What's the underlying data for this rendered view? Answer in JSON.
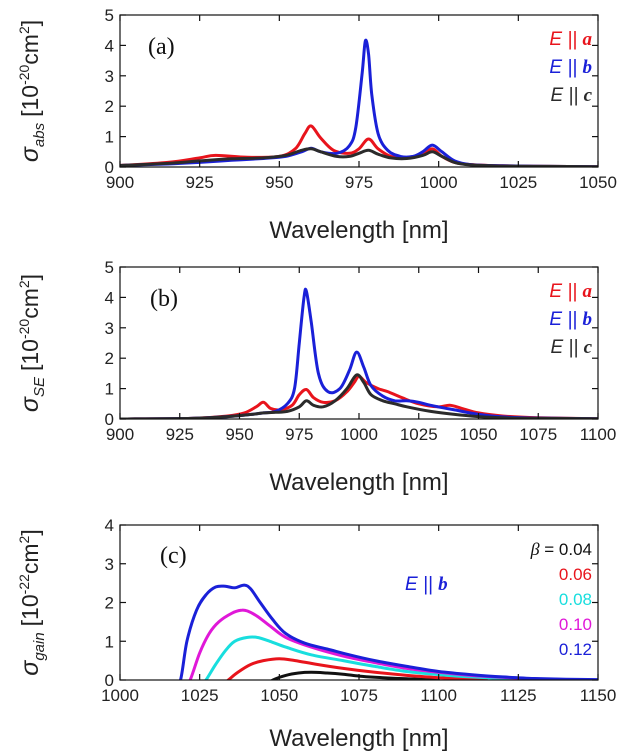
{
  "chart_data": [
    {
      "panel": "(a)",
      "type": "line",
      "xlabel": "Wavelength [nm]",
      "ylabel_symbol": "σ",
      "ylabel_sub": "abs",
      "ylabel_unit_pre": "[10",
      "ylabel_exp": "-20",
      "ylabel_unit_post": "cm",
      "ylabel_exp2": "2",
      "ylabel_close": "]",
      "xlim": [
        900,
        1050
      ],
      "ylim": [
        0,
        5
      ],
      "xticks": [
        900,
        925,
        950,
        975,
        1000,
        1025,
        1050
      ],
      "yticks": [
        0,
        1,
        2,
        3,
        4,
        5
      ],
      "grid": false,
      "legend_placement": "top-right",
      "series": [
        {
          "name": "E || a",
          "legend_e": "E ||",
          "legend_sym": "a",
          "color": "#e8141c",
          "x": [
            900,
            915,
            925,
            930,
            940,
            950,
            955,
            958,
            960,
            963,
            967,
            972,
            975,
            978,
            981,
            985,
            990,
            995,
            998,
            1001,
            1005,
            1010,
            1020,
            1035,
            1050
          ],
          "y": [
            0.05,
            0.15,
            0.3,
            0.38,
            0.32,
            0.35,
            0.6,
            1.1,
            1.35,
            0.95,
            0.55,
            0.45,
            0.6,
            0.92,
            0.6,
            0.35,
            0.3,
            0.4,
            0.6,
            0.35,
            0.15,
            0.08,
            0.04,
            0.02,
            0.01
          ]
        },
        {
          "name": "E || b",
          "legend_e": "E ||",
          "legend_sym": "b",
          "color": "#1a20d8",
          "x": [
            900,
            915,
            925,
            935,
            945,
            952,
            957,
            960,
            963,
            968,
            972,
            974,
            976,
            977,
            978,
            979,
            981,
            984,
            988,
            992,
            995,
            998,
            1001,
            1005,
            1010,
            1020,
            1035,
            1050
          ],
          "y": [
            0.05,
            0.1,
            0.15,
            0.22,
            0.28,
            0.35,
            0.5,
            0.62,
            0.5,
            0.45,
            0.7,
            1.3,
            3.1,
            4.15,
            3.7,
            2.4,
            1.1,
            0.55,
            0.35,
            0.35,
            0.5,
            0.72,
            0.5,
            0.2,
            0.08,
            0.04,
            0.02,
            0.01
          ]
        },
        {
          "name": "E || c",
          "legend_e": "E ||",
          "legend_sym": "c",
          "color": "#2b2b2b",
          "x": [
            900,
            915,
            925,
            935,
            945,
            952,
            957,
            960,
            963,
            968,
            972,
            975,
            978,
            981,
            985,
            990,
            995,
            998,
            1001,
            1005,
            1010,
            1020,
            1035,
            1050
          ],
          "y": [
            0.05,
            0.12,
            0.2,
            0.27,
            0.3,
            0.38,
            0.55,
            0.6,
            0.5,
            0.35,
            0.35,
            0.45,
            0.55,
            0.42,
            0.3,
            0.28,
            0.38,
            0.5,
            0.35,
            0.15,
            0.07,
            0.03,
            0.02,
            0.01
          ]
        }
      ]
    },
    {
      "panel": "(b)",
      "type": "line",
      "xlabel": "Wavelength [nm]",
      "ylabel_symbol": "σ",
      "ylabel_sub": "SE",
      "ylabel_unit_pre": "[10",
      "ylabel_exp": "-20",
      "ylabel_unit_post": "cm",
      "ylabel_exp2": "2",
      "ylabel_close": "]",
      "xlim": [
        900,
        1100
      ],
      "ylim": [
        0,
        5
      ],
      "xticks": [
        900,
        925,
        950,
        975,
        1000,
        1025,
        1050,
        1075,
        1100
      ],
      "yticks": [
        0,
        1,
        2,
        3,
        4,
        5
      ],
      "grid": false,
      "legend_placement": "top-right",
      "series": [
        {
          "name": "E || a",
          "legend_e": "E ||",
          "legend_sym": "a",
          "color": "#e8141c",
          "x": [
            900,
            930,
            945,
            952,
            957,
            960,
            963,
            967,
            972,
            975,
            978,
            981,
            985,
            990,
            995,
            998,
            1000,
            1003,
            1008,
            1012,
            1018,
            1025,
            1033,
            1038,
            1043,
            1050,
            1060,
            1075,
            1100
          ],
          "y": [
            0,
            0.02,
            0.1,
            0.2,
            0.4,
            0.55,
            0.35,
            0.3,
            0.45,
            0.8,
            0.97,
            0.7,
            0.55,
            0.6,
            0.9,
            1.2,
            1.4,
            1.2,
            1.0,
            0.9,
            0.7,
            0.5,
            0.4,
            0.45,
            0.35,
            0.2,
            0.1,
            0.04,
            0.01
          ]
        },
        {
          "name": "E || b",
          "legend_e": "E ||",
          "legend_sym": "b",
          "color": "#1a20d8",
          "x": [
            900,
            930,
            945,
            955,
            960,
            965,
            970,
            973,
            975,
            977,
            978,
            980,
            983,
            987,
            992,
            996,
            999,
            1002,
            1005,
            1010,
            1015,
            1020,
            1025,
            1030,
            1040,
            1050,
            1060,
            1075,
            1100
          ],
          "y": [
            0,
            0.02,
            0.08,
            0.15,
            0.2,
            0.25,
            0.5,
            1.0,
            2.5,
            4.0,
            4.2,
            3.2,
            1.5,
            0.9,
            1.0,
            1.6,
            2.2,
            1.7,
            1.1,
            0.75,
            0.6,
            0.6,
            0.55,
            0.45,
            0.3,
            0.15,
            0.07,
            0.03,
            0.01
          ]
        },
        {
          "name": "E || c",
          "legend_e": "E ||",
          "legend_sym": "c",
          "color": "#2b2b2b",
          "x": [
            900,
            930,
            945,
            955,
            960,
            965,
            970,
            975,
            978,
            981,
            985,
            990,
            995,
            999,
            1002,
            1005,
            1010,
            1015,
            1020,
            1030,
            1040,
            1050,
            1060,
            1075,
            1100
          ],
          "y": [
            0,
            0.02,
            0.08,
            0.15,
            0.2,
            0.22,
            0.25,
            0.4,
            0.6,
            0.45,
            0.4,
            0.6,
            1.0,
            1.45,
            1.2,
            0.8,
            0.6,
            0.5,
            0.4,
            0.25,
            0.15,
            0.08,
            0.04,
            0.02,
            0.01
          ]
        }
      ]
    },
    {
      "panel": "(c)",
      "type": "line",
      "xlabel": "Wavelength [nm]",
      "ylabel_symbol": "σ",
      "ylabel_sub": "gain",
      "ylabel_unit_pre": "[10",
      "ylabel_exp": "-22",
      "ylabel_unit_post": "cm",
      "ylabel_exp2": "2",
      "ylabel_close": "]",
      "xlim": [
        1000,
        1150
      ],
      "ylim": [
        0,
        4
      ],
      "xticks": [
        1000,
        1025,
        1050,
        1075,
        1100,
        1125,
        1150
      ],
      "yticks": [
        0,
        1,
        2,
        3,
        4
      ],
      "grid": false,
      "legend_placement": "right",
      "annotation_e": "E ||",
      "annotation_sym": "b",
      "annotation_color": "#1a20d8",
      "beta_symbol": "β",
      "beta_prefix": " = ",
      "series": [
        {
          "name": "0.04",
          "color": "#111111",
          "x": [
            1044,
            1048,
            1052,
            1056,
            1060,
            1065,
            1070,
            1075,
            1080,
            1090,
            1100
          ],
          "y": [
            -0.2,
            0,
            0.12,
            0.18,
            0.2,
            0.18,
            0.15,
            0.1,
            0.07,
            0.03,
            0
          ]
        },
        {
          "name": "0.06",
          "color": "#e8141c",
          "x": [
            1031,
            1034,
            1037,
            1041,
            1045,
            1050,
            1055,
            1062,
            1070,
            1080,
            1090,
            1100,
            1110,
            1115
          ],
          "y": [
            -0.2,
            0,
            0.2,
            0.4,
            0.5,
            0.55,
            0.5,
            0.4,
            0.3,
            0.2,
            0.12,
            0.06,
            0.02,
            0
          ]
        },
        {
          "name": "0.08",
          "color": "#18dede",
          "x": [
            1025,
            1027,
            1030,
            1033,
            1036,
            1040,
            1043,
            1047,
            1052,
            1060,
            1070,
            1080,
            1090,
            1100,
            1110,
            1120,
            1130
          ],
          "y": [
            -0.2,
            0,
            0.4,
            0.75,
            1.0,
            1.1,
            1.1,
            1.0,
            0.85,
            0.65,
            0.5,
            0.35,
            0.22,
            0.14,
            0.08,
            0.04,
            0.01
          ]
        },
        {
          "name": "0.10",
          "color": "#e018d8",
          "x": [
            1020,
            1022,
            1025,
            1028,
            1031,
            1035,
            1038,
            1040,
            1043,
            1047,
            1052,
            1060,
            1070,
            1080,
            1090,
            1100,
            1110,
            1120,
            1130,
            1140
          ],
          "y": [
            -0.2,
            0,
            0.7,
            1.2,
            1.5,
            1.72,
            1.8,
            1.78,
            1.65,
            1.4,
            1.1,
            0.85,
            0.62,
            0.45,
            0.3,
            0.2,
            0.12,
            0.07,
            0.03,
            0.01
          ]
        },
        {
          "name": "0.12",
          "color": "#1a20d8",
          "x": [
            1017,
            1019,
            1021,
            1024,
            1027,
            1030,
            1033,
            1036,
            1039,
            1041,
            1044,
            1048,
            1052,
            1058,
            1065,
            1072,
            1080,
            1090,
            1100,
            1110,
            1120,
            1130,
            1140,
            1150
          ],
          "y": [
            -0.2,
            0,
            1.0,
            1.8,
            2.2,
            2.4,
            2.42,
            2.38,
            2.45,
            2.35,
            2.0,
            1.55,
            1.2,
            0.95,
            0.8,
            0.65,
            0.5,
            0.35,
            0.22,
            0.14,
            0.08,
            0.04,
            0.02,
            0.01
          ]
        }
      ]
    }
  ]
}
